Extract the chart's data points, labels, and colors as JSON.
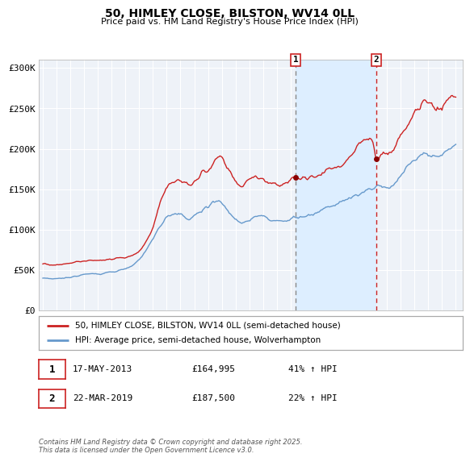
{
  "title": "50, HIMLEY CLOSE, BILSTON, WV14 0LL",
  "subtitle": "Price paid vs. HM Land Registry's House Price Index (HPI)",
  "background_color": "#ffffff",
  "plot_bg_color": "#eef2f8",
  "grid_color": "#ffffff",
  "red_line_color": "#cc2222",
  "blue_line_color": "#6699cc",
  "span_color": "#ddeeff",
  "ylim": [
    0,
    310000
  ],
  "yticks": [
    0,
    50000,
    100000,
    150000,
    200000,
    250000,
    300000
  ],
  "ytick_labels": [
    "£0",
    "£50K",
    "£100K",
    "£150K",
    "£200K",
    "£250K",
    "£300K"
  ],
  "xlim_start": 1994.7,
  "xlim_end": 2025.5,
  "xticks": [
    1995,
    1996,
    1997,
    1998,
    1999,
    2000,
    2001,
    2002,
    2003,
    2004,
    2005,
    2006,
    2007,
    2008,
    2009,
    2010,
    2011,
    2012,
    2013,
    2014,
    2015,
    2016,
    2017,
    2018,
    2019,
    2020,
    2021,
    2022,
    2023,
    2024,
    2025
  ],
  "marker1_x": 2013.37,
  "marker1_y": 164995,
  "marker1_label": "1",
  "marker1_date": "17-MAY-2013",
  "marker1_price": "£164,995",
  "marker1_hpi": "41% ↑ HPI",
  "marker2_x": 2019.22,
  "marker2_y": 187500,
  "marker2_label": "2",
  "marker2_date": "22-MAR-2019",
  "marker2_price": "£187,500",
  "marker2_hpi": "22% ↑ HPI",
  "legend_label_red": "50, HIMLEY CLOSE, BILSTON, WV14 0LL (semi-detached house)",
  "legend_label_blue": "HPI: Average price, semi-detached house, Wolverhampton",
  "footer_text": "Contains HM Land Registry data © Crown copyright and database right 2025.\nThis data is licensed under the Open Government Licence v3.0."
}
